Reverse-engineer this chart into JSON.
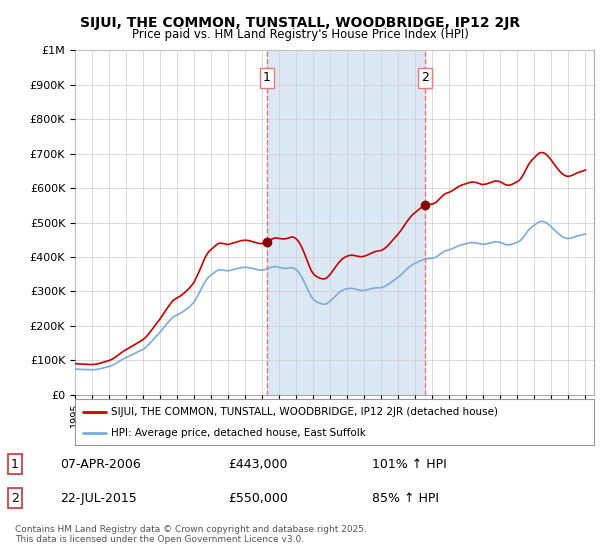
{
  "title": "SIJUI, THE COMMON, TUNSTALL, WOODBRIDGE, IP12 2JR",
  "subtitle": "Price paid vs. HM Land Registry's House Price Index (HPI)",
  "ytick_values": [
    0,
    100000,
    200000,
    300000,
    400000,
    500000,
    600000,
    700000,
    800000,
    900000,
    1000000
  ],
  "ylim": [
    0,
    1000000
  ],
  "xlim_start": 1995.0,
  "xlim_end": 2025.5,
  "vline1_x": 2006.27,
  "vline2_x": 2015.55,
  "sale1_date": "07-APR-2006",
  "sale1_price": "£443,000",
  "sale1_hpi": "101% ↑ HPI",
  "sale2_date": "22-JUL-2015",
  "sale2_price": "£550,000",
  "sale2_hpi": "85% ↑ HPI",
  "legend_line1": "SIJUI, THE COMMON, TUNSTALL, WOODBRIDGE, IP12 2JR (detached house)",
  "legend_line2": "HPI: Average price, detached house, East Suffolk",
  "footnote": "Contains HM Land Registry data © Crown copyright and database right 2025.\nThis data is licensed under the Open Government Licence v3.0.",
  "line_color_red": "#cc0000",
  "line_color_blue": "#7aabe0",
  "vline_color": "#ee7777",
  "shade_color": "#dde8f5",
  "grid_color": "#cccccc",
  "background_color": "#ffffff",
  "plot_bg_color": "#ffffff",
  "hpi_x": [
    1995.0,
    1995.083,
    1995.167,
    1995.25,
    1995.333,
    1995.417,
    1995.5,
    1995.583,
    1995.667,
    1995.75,
    1995.833,
    1995.917,
    1996.0,
    1996.083,
    1996.167,
    1996.25,
    1996.333,
    1996.417,
    1996.5,
    1996.583,
    1996.667,
    1996.75,
    1996.833,
    1996.917,
    1997.0,
    1997.083,
    1997.167,
    1997.25,
    1997.333,
    1997.417,
    1997.5,
    1997.583,
    1997.667,
    1997.75,
    1997.833,
    1997.917,
    1998.0,
    1998.083,
    1998.167,
    1998.25,
    1998.333,
    1998.417,
    1998.5,
    1998.583,
    1998.667,
    1998.75,
    1998.833,
    1998.917,
    1999.0,
    1999.083,
    1999.167,
    1999.25,
    1999.333,
    1999.417,
    1999.5,
    1999.583,
    1999.667,
    1999.75,
    1999.833,
    1999.917,
    2000.0,
    2000.083,
    2000.167,
    2000.25,
    2000.333,
    2000.417,
    2000.5,
    2000.583,
    2000.667,
    2000.75,
    2000.833,
    2000.917,
    2001.0,
    2001.083,
    2001.167,
    2001.25,
    2001.333,
    2001.417,
    2001.5,
    2001.583,
    2001.667,
    2001.75,
    2001.833,
    2001.917,
    2002.0,
    2002.083,
    2002.167,
    2002.25,
    2002.333,
    2002.417,
    2002.5,
    2002.583,
    2002.667,
    2002.75,
    2002.833,
    2002.917,
    2003.0,
    2003.083,
    2003.167,
    2003.25,
    2003.333,
    2003.417,
    2003.5,
    2003.583,
    2003.667,
    2003.75,
    2003.833,
    2003.917,
    2004.0,
    2004.083,
    2004.167,
    2004.25,
    2004.333,
    2004.417,
    2004.5,
    2004.583,
    2004.667,
    2004.75,
    2004.833,
    2004.917,
    2005.0,
    2005.083,
    2005.167,
    2005.25,
    2005.333,
    2005.417,
    2005.5,
    2005.583,
    2005.667,
    2005.75,
    2005.833,
    2005.917,
    2006.0,
    2006.083,
    2006.167,
    2006.25,
    2006.333,
    2006.417,
    2006.5,
    2006.583,
    2006.667,
    2006.75,
    2006.833,
    2006.917,
    2007.0,
    2007.083,
    2007.167,
    2007.25,
    2007.333,
    2007.417,
    2007.5,
    2007.583,
    2007.667,
    2007.75,
    2007.833,
    2007.917,
    2008.0,
    2008.083,
    2008.167,
    2008.25,
    2008.333,
    2008.417,
    2008.5,
    2008.583,
    2008.667,
    2008.75,
    2008.833,
    2008.917,
    2009.0,
    2009.083,
    2009.167,
    2009.25,
    2009.333,
    2009.417,
    2009.5,
    2009.583,
    2009.667,
    2009.75,
    2009.833,
    2009.917,
    2010.0,
    2010.083,
    2010.167,
    2010.25,
    2010.333,
    2010.417,
    2010.5,
    2010.583,
    2010.667,
    2010.75,
    2010.833,
    2010.917,
    2011.0,
    2011.083,
    2011.167,
    2011.25,
    2011.333,
    2011.417,
    2011.5,
    2011.583,
    2011.667,
    2011.75,
    2011.833,
    2011.917,
    2012.0,
    2012.083,
    2012.167,
    2012.25,
    2012.333,
    2012.417,
    2012.5,
    2012.583,
    2012.667,
    2012.75,
    2012.833,
    2012.917,
    2013.0,
    2013.083,
    2013.167,
    2013.25,
    2013.333,
    2013.417,
    2013.5,
    2013.583,
    2013.667,
    2013.75,
    2013.833,
    2013.917,
    2014.0,
    2014.083,
    2014.167,
    2014.25,
    2014.333,
    2014.417,
    2014.5,
    2014.583,
    2014.667,
    2014.75,
    2014.833,
    2014.917,
    2015.0,
    2015.083,
    2015.167,
    2015.25,
    2015.333,
    2015.417,
    2015.5,
    2015.583,
    2015.667,
    2015.75,
    2015.833,
    2015.917,
    2016.0,
    2016.083,
    2016.167,
    2016.25,
    2016.333,
    2016.417,
    2016.5,
    2016.583,
    2016.667,
    2016.75,
    2016.833,
    2016.917,
    2017.0,
    2017.083,
    2017.167,
    2017.25,
    2017.333,
    2017.417,
    2017.5,
    2017.583,
    2017.667,
    2017.75,
    2017.833,
    2017.917,
    2018.0,
    2018.083,
    2018.167,
    2018.25,
    2018.333,
    2018.417,
    2018.5,
    2018.583,
    2018.667,
    2018.75,
    2018.833,
    2018.917,
    2019.0,
    2019.083,
    2019.167,
    2019.25,
    2019.333,
    2019.417,
    2019.5,
    2019.583,
    2019.667,
    2019.75,
    2019.833,
    2019.917,
    2020.0,
    2020.083,
    2020.167,
    2020.25,
    2020.333,
    2020.417,
    2020.5,
    2020.583,
    2020.667,
    2020.75,
    2020.833,
    2020.917,
    2021.0,
    2021.083,
    2021.167,
    2021.25,
    2021.333,
    2021.417,
    2021.5,
    2021.583,
    2021.667,
    2021.75,
    2021.833,
    2021.917,
    2022.0,
    2022.083,
    2022.167,
    2022.25,
    2022.333,
    2022.417,
    2022.5,
    2022.583,
    2022.667,
    2022.75,
    2022.833,
    2022.917,
    2023.0,
    2023.083,
    2023.167,
    2023.25,
    2023.333,
    2023.417,
    2023.5,
    2023.583,
    2023.667,
    2023.75,
    2023.833,
    2023.917,
    2024.0,
    2024.083,
    2024.167,
    2024.25,
    2024.333,
    2024.417,
    2024.5,
    2024.583,
    2024.667,
    2024.75,
    2024.833,
    2024.917,
    2025.0
  ],
  "hpi_y": [
    75000,
    74500,
    74200,
    74000,
    73800,
    73500,
    73200,
    73000,
    72800,
    72600,
    72500,
    72400,
    72500,
    72700,
    73000,
    73500,
    74200,
    75000,
    76000,
    77000,
    78000,
    79000,
    80000,
    81000,
    82000,
    83500,
    85000,
    87000,
    89000,
    91500,
    94000,
    96500,
    99000,
    101500,
    104000,
    106000,
    108000,
    110000,
    112000,
    114000,
    116000,
    118000,
    120000,
    122000,
    124000,
    126000,
    128000,
    130000,
    132000,
    135000,
    138500,
    142000,
    146000,
    150500,
    155000,
    159500,
    164000,
    168500,
    173000,
    177500,
    182000,
    187000,
    192000,
    197000,
    202000,
    207000,
    212000,
    216500,
    221000,
    225500,
    228000,
    230000,
    232000,
    234000,
    236000,
    238500,
    241000,
    244000,
    247000,
    250000,
    253000,
    257000,
    261000,
    265000,
    270000,
    277000,
    284000,
    291000,
    299000,
    307000,
    315000,
    323000,
    330000,
    336000,
    341000,
    345000,
    348000,
    351000,
    354000,
    357000,
    360000,
    362000,
    363000,
    363000,
    362500,
    362000,
    361000,
    360000,
    360000,
    361000,
    362000,
    363000,
    364000,
    365000,
    366000,
    367000,
    368000,
    369000,
    369500,
    370000,
    370000,
    370000,
    369500,
    369000,
    368000,
    367000,
    366000,
    365000,
    364000,
    363000,
    362500,
    362000,
    362500,
    363000,
    364000,
    365000,
    366500,
    368000,
    369500,
    371000,
    372000,
    372500,
    372000,
    371000,
    370000,
    369000,
    368000,
    367500,
    367000,
    367000,
    367500,
    368000,
    368500,
    369000,
    368000,
    366000,
    363000,
    359000,
    354000,
    348000,
    341000,
    333000,
    325000,
    316000,
    307000,
    298000,
    290000,
    283000,
    278000,
    274000,
    271000,
    269000,
    267000,
    265500,
    264000,
    263000,
    263000,
    264000,
    266000,
    269000,
    272000,
    276000,
    280000,
    284000,
    288000,
    292000,
    296000,
    299000,
    302000,
    304000,
    306000,
    307000,
    308000,
    309000,
    309000,
    309000,
    308500,
    307500,
    306500,
    305500,
    304500,
    303500,
    303000,
    303000,
    303500,
    304000,
    305000,
    306000,
    307000,
    308000,
    309000,
    310000,
    310500,
    311000,
    311000,
    311000,
    311500,
    312500,
    314000,
    316000,
    318500,
    321000,
    324000,
    327000,
    330000,
    333000,
    336000,
    339000,
    342000,
    345500,
    349000,
    353000,
    357000,
    361000,
    365000,
    368500,
    372000,
    375000,
    378000,
    380000,
    382000,
    384000,
    386000,
    388000,
    390000,
    391500,
    393000,
    394000,
    395000,
    395500,
    396000,
    396000,
    396500,
    397500,
    399000,
    401000,
    404000,
    407000,
    410000,
    413000,
    415500,
    417500,
    419000,
    420000,
    421000,
    422500,
    424000,
    426000,
    428000,
    430000,
    432000,
    433500,
    435000,
    436000,
    437000,
    438000,
    439000,
    440000,
    441000,
    441500,
    442000,
    442000,
    441500,
    441000,
    440000,
    439000,
    438000,
    437000,
    437000,
    437500,
    438000,
    439000,
    440000,
    441000,
    442000,
    443000,
    444000,
    444000,
    444000,
    443500,
    442500,
    441000,
    439000,
    437500,
    436000,
    435500,
    435500,
    436000,
    437000,
    438500,
    440000,
    441500,
    443000,
    445000,
    448000,
    452000,
    457000,
    462000,
    468000,
    474000,
    479000,
    483000,
    487000,
    490000,
    493000,
    496000,
    499000,
    501500,
    503000,
    503500,
    503000,
    502000,
    500000,
    497500,
    494500,
    491000,
    487000,
    483000,
    479000,
    475000,
    471000,
    467500,
    464000,
    461000,
    458500,
    456500,
    455000,
    454000,
    454000,
    454500,
    455500,
    456500,
    458000,
    459500,
    461000,
    462000,
    463000,
    464000,
    465000,
    466000,
    467000
  ]
}
